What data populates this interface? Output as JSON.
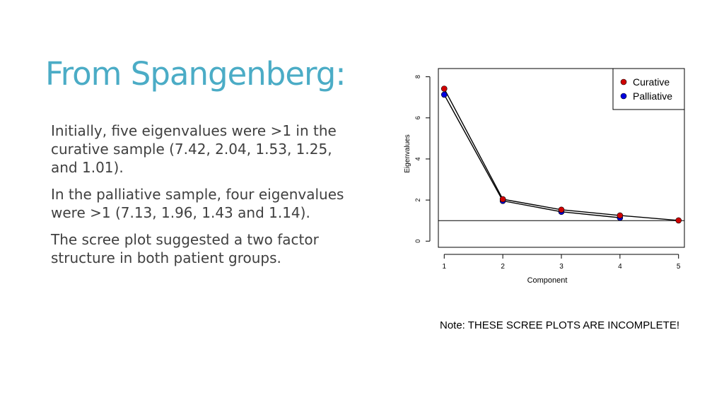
{
  "slide": {
    "title": "From Spangenberg:",
    "paragraphs": [
      "Initially, five eigenvalues were >1 in the curative sample (7.42, 2.04, 1.53, 1.25, and 1.01).",
      "In the palliative sample, four eigenvalues were >1 (7.13, 1.96, 1.43 and 1.14).",
      "The scree plot suggested a two factor structure in both patient groups."
    ],
    "note": "Note:  THESE SCREE PLOTS ARE INCOMPLETE!"
  },
  "colors": {
    "title": "#4bacc6",
    "curative": "#d00000",
    "palliative": "#0000e0"
  },
  "chart_data": {
    "type": "line",
    "xlabel": "Component",
    "ylabel": "Eigenvalues",
    "x": [
      1,
      2,
      3,
      4,
      5
    ],
    "xticks": [
      "1",
      "2",
      "3",
      "4",
      "5"
    ],
    "yticks": [
      "0",
      "2",
      "4",
      "6",
      "8"
    ],
    "xlim": [
      0.9,
      5.1
    ],
    "ylim": [
      -0.3,
      8.4
    ],
    "reference_line": 1,
    "legend_position": "top-right",
    "grid": false,
    "series": [
      {
        "name": "Curative",
        "values": [
          7.42,
          2.04,
          1.53,
          1.25,
          1.01
        ]
      },
      {
        "name": "Palliative",
        "values": [
          7.13,
          1.96,
          1.43,
          1.14,
          null
        ]
      }
    ]
  }
}
